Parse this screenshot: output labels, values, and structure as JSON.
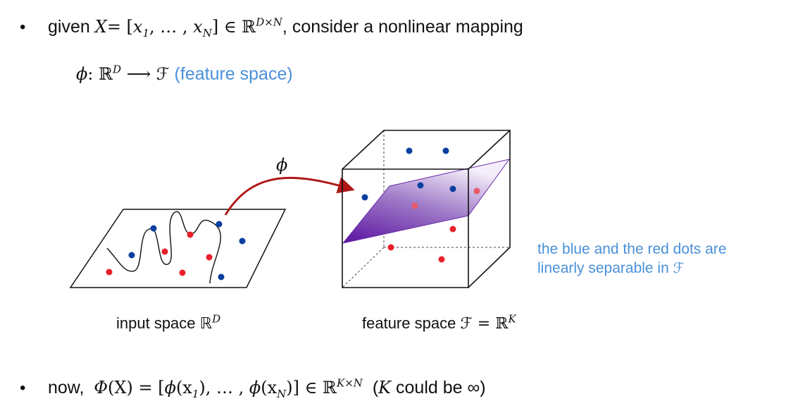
{
  "bullet_symbol": "•",
  "line1": {
    "given": "given",
    "X": "X",
    "eq_open": "= [",
    "x1": "x",
    "sub1": "1",
    "dots": ", … , ",
    "xN": "x",
    "subN": "N",
    "close_in": "] ∈ ℝ",
    "sup": "D×N",
    "rest": ", consider a nonlinear mapping"
  },
  "line2": {
    "phi": "ϕ",
    "colon": ": ℝ",
    "sup": "D",
    "arrow": " ⟶ ",
    "F": "ℱ",
    "feature_space": " (feature space)"
  },
  "diagram": {
    "phi_label": "ϕ",
    "input_space_text": "input space ℝ",
    "input_space_sup": "D",
    "feature_space_text": "feature space ",
    "feature_space_F": "ℱ",
    "feature_space_eq": " = ℝ",
    "feature_space_sup": "K",
    "note_line1": "the blue and the red dots are",
    "note_line2": "linearly separable in ",
    "note_F": "ℱ",
    "colors": {
      "blue_dot": "#0a3fa0",
      "red_dot": "#e8202a",
      "arrow": "#b01818",
      "plane_dark": "#6a1fa8",
      "plane_light": "#ede4f5"
    }
  },
  "line3": {
    "now": "now,",
    "Phi": "Φ",
    "X_paren": "(X) = [",
    "phi1": "ϕ",
    "x1": "(x",
    "sub1": "1",
    "mid": "), … , ",
    "phiN": "ϕ",
    "xN": "(x",
    "subN": "N",
    "close_in": ")] ∈ ℝ",
    "sup": "K×N",
    "K": "K",
    "could_be": " could be ∞)",
    "open_paren": "("
  }
}
